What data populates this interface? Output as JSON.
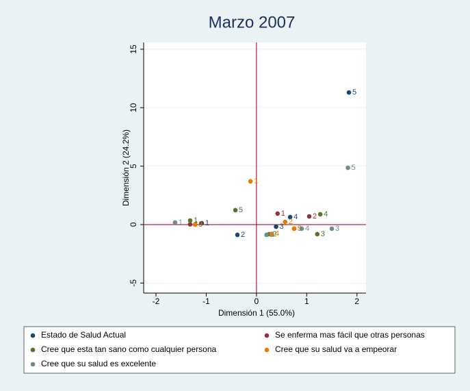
{
  "chart_data": {
    "type": "scatter",
    "title": "Marzo 2007",
    "x_label": "Dimensión 1 (55.0%)",
    "y_label": "Dimensión 2 (24.2%)",
    "xlim": [
      -2.245,
      2.18
    ],
    "ylim": [
      -5.86,
      15.58
    ],
    "xticks": [
      -2,
      -1,
      0,
      1,
      2
    ],
    "yticks": [
      -5,
      0,
      5,
      10,
      15
    ],
    "grid": true,
    "reference_lines": true,
    "series": [
      {
        "name": "Estado de Salud Actual",
        "color": "#1a476f",
        "labels": [
          "1",
          "2",
          "3",
          "4",
          "5"
        ],
        "x": [
          -1.09,
          -0.38,
          0.39,
          0.67,
          1.84
        ],
        "y": [
          0.12,
          -0.88,
          -0.18,
          0.64,
          11.3
        ]
      },
      {
        "name": "Se enferma mas fácil que otras personas",
        "color": "#90353b",
        "labels": [
          "1",
          "2",
          "3",
          "4",
          "5"
        ],
        "x": [
          0.42,
          1.05,
          0.75,
          -1.32,
          -1.22
        ],
        "y": [
          0.94,
          0.7,
          -0.35,
          0.02,
          0.0
        ]
      },
      {
        "name": "Cree que esta tan sano como cualquier persona",
        "color": "#55752f",
        "labels": [
          "1",
          "2",
          "3",
          "4",
          "5"
        ],
        "x": [
          -1.32,
          0.25,
          1.21,
          1.27,
          -0.42
        ],
        "y": [
          0.35,
          -0.82,
          -0.82,
          0.88,
          1.23
        ]
      },
      {
        "name": "Cree que su salud va a empeorar",
        "color": "#e37e00",
        "labels": [
          "1",
          "2",
          "3",
          "4",
          "5"
        ],
        "x": [
          -0.12,
          0.57,
          -1.22,
          0.3,
          0.75
        ],
        "y": [
          3.7,
          0.23,
          0.0,
          -0.8,
          -0.35
        ]
      },
      {
        "name": "Cree que su salud es excelente",
        "color": "#6e8e84",
        "labels": [
          "1",
          "2",
          "3",
          "4",
          "5"
        ],
        "x": [
          -1.62,
          0.2,
          1.5,
          0.9,
          1.82
        ],
        "y": [
          0.18,
          -0.88,
          -0.35,
          -0.35,
          4.86
        ]
      }
    ]
  }
}
